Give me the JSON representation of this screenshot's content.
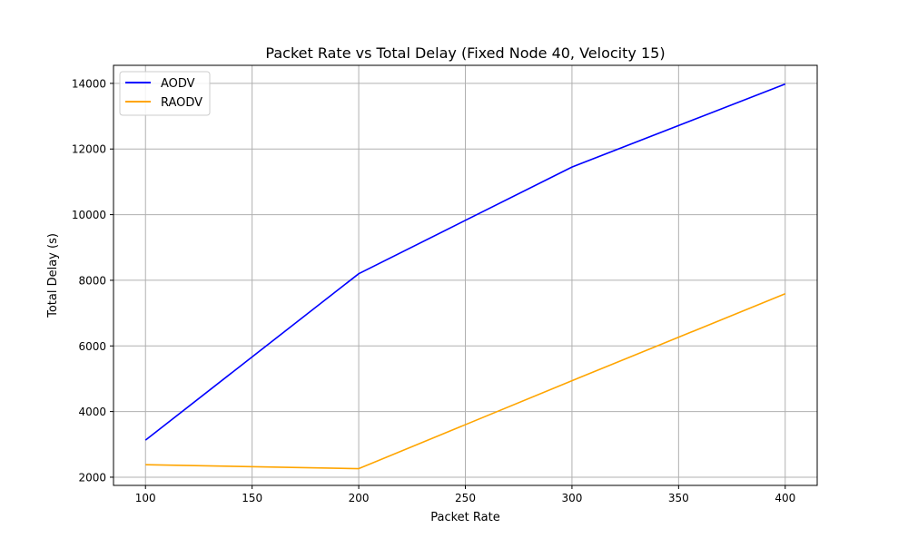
{
  "chart_data": {
    "type": "line",
    "title": "Packet Rate vs Total Delay (Fixed Node 40, Velocity 15)",
    "xlabel": "Packet Rate",
    "ylabel": "Total Delay (s)",
    "x": [
      100,
      200,
      300,
      400
    ],
    "xlim": [
      85,
      415
    ],
    "ylim": [
      1750,
      14550
    ],
    "xticks": [
      100,
      150,
      200,
      250,
      300,
      350,
      400
    ],
    "yticks": [
      2000,
      4000,
      6000,
      8000,
      10000,
      12000,
      14000
    ],
    "grid": true,
    "legend_position": "top-left",
    "series": [
      {
        "name": "AODV",
        "color": "#0000ff",
        "values": [
          3130,
          8200,
          11450,
          13980
        ]
      },
      {
        "name": "RAODV",
        "color": "#ffa500",
        "values": [
          2380,
          2260,
          4940,
          7590
        ]
      }
    ]
  }
}
